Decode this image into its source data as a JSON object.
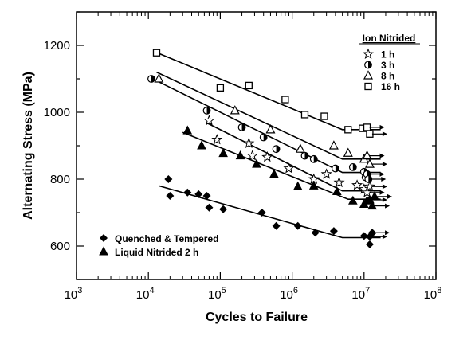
{
  "chart_data": {
    "type": "scatter",
    "xlabel": "Cycles to Failure",
    "ylabel": "Alternating Stress  (MPa)",
    "xscale": "log",
    "xlim": [
      1000,
      100000000
    ],
    "ylim": [
      500,
      1300
    ],
    "x_tick_labels": [
      {
        "base": "10",
        "exp": "3",
        "value": 1000
      },
      {
        "base": "10",
        "exp": "4",
        "value": 10000
      },
      {
        "base": "10",
        "exp": "5",
        "value": 100000
      },
      {
        "base": "10",
        "exp": "6",
        "value": 1000000
      },
      {
        "base": "10",
        "exp": "7",
        "value": 10000000
      },
      {
        "base": "10",
        "exp": "8",
        "value": 100000000
      }
    ],
    "y_ticks": [
      600,
      800,
      1000,
      1200
    ],
    "y_tick_labels": [
      "600",
      "800",
      "1000",
      "1200"
    ],
    "grid": false,
    "legend_ion": {
      "title": "Ion Nitrided",
      "placement": "top-right",
      "entries": [
        {
          "label": "1  h",
          "marker": "star"
        },
        {
          "label": "3  h",
          "marker": "half-circle"
        },
        {
          "label": "8  h",
          "marker": "triangle-open"
        },
        {
          "label": "16  h",
          "marker": "square-open"
        }
      ]
    },
    "legend_other": {
      "placement": "bottom-left",
      "entries": [
        {
          "label": "Quenched & Tempered",
          "marker": "diamond"
        },
        {
          "label": "Liquid Nitrided   2 h",
          "marker": "triangle-filled"
        }
      ]
    },
    "series": [
      {
        "name": "16  h",
        "marker": "square-open",
        "points": [
          [
            13000,
            1178
          ],
          [
            100000,
            1073
          ],
          [
            250000,
            1080
          ],
          [
            800000,
            1038
          ],
          [
            1500000,
            993
          ],
          [
            2800000,
            988
          ],
          [
            6000000,
            948
          ],
          [
            9500000,
            952
          ]
        ],
        "runouts": [
          [
            11000000,
            955
          ],
          [
            12000000,
            935
          ]
        ],
        "trend": [
          [
            12000,
            1182
          ],
          [
            5000000,
            948
          ],
          [
            17000000,
            948
          ]
        ]
      },
      {
        "name": "8  h",
        "marker": "triangle-open",
        "points": [
          [
            14000,
            1100
          ],
          [
            160000,
            1005
          ],
          [
            500000,
            948
          ],
          [
            1300000,
            890
          ],
          [
            3800000,
            900
          ],
          [
            6000000,
            878
          ],
          [
            10000000,
            860
          ]
        ],
        "runouts": [
          [
            11000000,
            870
          ],
          [
            12000000,
            845
          ]
        ],
        "trend": [
          [
            13000,
            1120
          ],
          [
            5000000,
            860
          ],
          [
            17000000,
            860
          ]
        ]
      },
      {
        "name": "3  h",
        "marker": "half-circle",
        "points": [
          [
            11000,
            1100
          ],
          [
            65000,
            1005
          ],
          [
            200000,
            955
          ],
          [
            400000,
            925
          ],
          [
            600000,
            890
          ],
          [
            1500000,
            870
          ],
          [
            2000000,
            860
          ],
          [
            4000000,
            832
          ],
          [
            7000000,
            836
          ],
          [
            10000000,
            822
          ],
          [
            10500000,
            806
          ]
        ],
        "runouts": [
          [
            11000000,
            815
          ],
          [
            11500000,
            800
          ]
        ],
        "trend": [
          [
            11000,
            1102
          ],
          [
            5000000,
            820
          ],
          [
            17000000,
            820
          ]
        ]
      },
      {
        "name": "1  h",
        "marker": "star",
        "points": [
          [
            70000,
            975
          ],
          [
            90000,
            918
          ],
          [
            250000,
            907
          ],
          [
            280000,
            870
          ],
          [
            450000,
            866
          ],
          [
            900000,
            832
          ],
          [
            2000000,
            800
          ],
          [
            3000000,
            815
          ],
          [
            4500000,
            790
          ],
          [
            8000000,
            782
          ],
          [
            10000000,
            770
          ]
        ],
        "runouts": [
          [
            11000000,
            760
          ],
          [
            12000000,
            778
          ]
        ],
        "trend": [
          [
            65000,
            968
          ],
          [
            5000000,
            765
          ],
          [
            17000000,
            765
          ]
        ]
      },
      {
        "name": "Liquid Nitrided   2 h",
        "marker": "triangle-filled",
        "points": [
          [
            35000,
            945
          ],
          [
            55000,
            900
          ],
          [
            110000,
            877
          ],
          [
            190000,
            870
          ],
          [
            320000,
            845
          ],
          [
            560000,
            815
          ],
          [
            1200000,
            778
          ],
          [
            2000000,
            780
          ],
          [
            4200000,
            763
          ],
          [
            7000000,
            735
          ],
          [
            10000000,
            725
          ],
          [
            11000000,
            735
          ]
        ],
        "runouts": [
          [
            12000000,
            738
          ],
          [
            13000000,
            720
          ],
          [
            14000000,
            748
          ]
        ],
        "trend": [
          [
            30000,
            940
          ],
          [
            6000000,
            740
          ],
          [
            17000000,
            740
          ]
        ]
      },
      {
        "name": "Quenched & Tempered",
        "marker": "diamond",
        "points": [
          [
            19000,
            800
          ],
          [
            20000,
            750
          ],
          [
            35000,
            760
          ],
          [
            50000,
            755
          ],
          [
            65000,
            750
          ],
          [
            70000,
            715
          ],
          [
            110000,
            710
          ],
          [
            380000,
            700
          ],
          [
            600000,
            660
          ],
          [
            1200000,
            660
          ],
          [
            2100000,
            640
          ],
          [
            3800000,
            645
          ],
          [
            10000000,
            630
          ],
          [
            12000000,
            605
          ],
          [
            13000000,
            638
          ]
        ],
        "runouts": [
          [
            12000000,
            628
          ],
          [
            13000000,
            640
          ]
        ],
        "trend": [
          [
            14000,
            780
          ],
          [
            5000000,
            625
          ],
          [
            17000000,
            625
          ]
        ]
      }
    ]
  }
}
